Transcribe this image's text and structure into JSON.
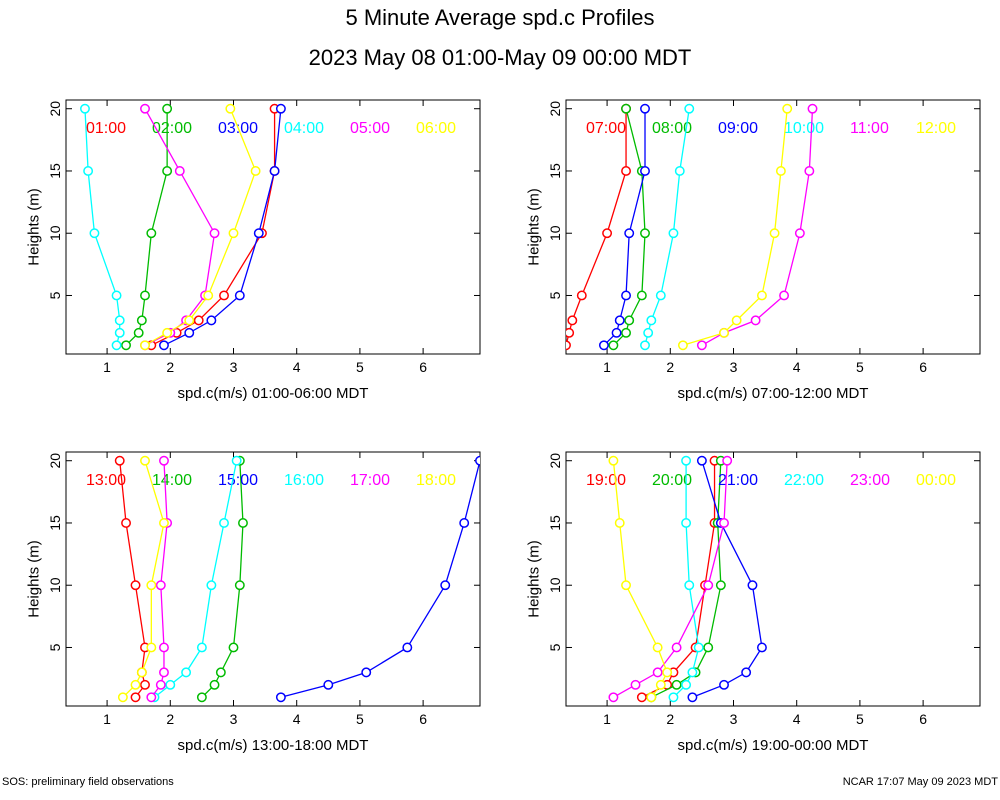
{
  "title": "5 Minute Average spd.c Profiles",
  "subtitle": "2023 May 08 01:00-May 09 00:00 MDT",
  "footer_left": "SOS: preliminary field observations",
  "footer_right": "NCAR 17:07 May 09 2023 MDT",
  "series_colors": [
    "#ff0000",
    "#00bb00",
    "#0000ff",
    "#00ffff",
    "#ff00ff",
    "#ffff00"
  ],
  "chart_data": [
    {
      "type": "line",
      "xlabel": "spd.c(m/s) 01:00-06:00 MDT",
      "ylabel": "Heights (m)",
      "xlim": [
        0.35,
        6.9
      ],
      "ylim": [
        0.3,
        20.7
      ],
      "xticks": [
        "1",
        "2",
        "3",
        "4",
        "5",
        "6"
      ],
      "yticks": [
        "5",
        "10",
        "15",
        "20"
      ],
      "heights": [
        1,
        2,
        3,
        5,
        10,
        15,
        20
      ],
      "series": [
        {
          "name": "01:00",
          "values": [
            1.7,
            2.1,
            2.45,
            2.85,
            3.45,
            3.65,
            3.65
          ]
        },
        {
          "name": "02:00",
          "values": [
            1.3,
            1.5,
            1.55,
            1.6,
            1.7,
            1.95,
            1.95
          ]
        },
        {
          "name": "03:00",
          "values": [
            1.9,
            2.3,
            2.65,
            3.1,
            3.4,
            3.65,
            3.75
          ]
        },
        {
          "name": "04:00",
          "values": [
            1.15,
            1.2,
            1.2,
            1.15,
            0.8,
            0.7,
            0.65
          ]
        },
        {
          "name": "05:00",
          "values": [
            1.6,
            2.0,
            2.25,
            2.55,
            2.7,
            2.15,
            1.6
          ]
        },
        {
          "name": "06:00",
          "values": [
            1.6,
            1.95,
            2.3,
            2.6,
            3.0,
            3.35,
            2.95
          ]
        }
      ]
    },
    {
      "type": "line",
      "xlabel": "spd.c(m/s) 07:00-12:00 MDT",
      "ylabel": "Heights (m)",
      "xlim": [
        0.35,
        6.9
      ],
      "ylim": [
        0.3,
        20.7
      ],
      "xticks": [
        "1",
        "2",
        "3",
        "4",
        "5",
        "6"
      ],
      "yticks": [
        "5",
        "10",
        "15",
        "20"
      ],
      "heights": [
        1,
        2,
        3,
        5,
        10,
        15,
        20
      ],
      "series": [
        {
          "name": "07:00",
          "values": [
            0.35,
            0.4,
            0.45,
            0.6,
            1.0,
            1.3,
            1.3
          ]
        },
        {
          "name": "08:00",
          "values": [
            1.1,
            1.3,
            1.35,
            1.55,
            1.6,
            1.55,
            1.3
          ]
        },
        {
          "name": "09:00",
          "values": [
            0.95,
            1.15,
            1.2,
            1.3,
            1.35,
            1.6,
            1.6
          ]
        },
        {
          "name": "10:00",
          "values": [
            1.6,
            1.65,
            1.7,
            1.85,
            2.05,
            2.15,
            2.3
          ]
        },
        {
          "name": "11:00",
          "values": [
            2.5,
            2.85,
            3.35,
            3.8,
            4.05,
            4.2,
            4.25
          ]
        },
        {
          "name": "12:00",
          "values": [
            2.2,
            2.85,
            3.05,
            3.45,
            3.65,
            3.75,
            3.85
          ]
        }
      ]
    },
    {
      "type": "line",
      "xlabel": "spd.c(m/s) 13:00-18:00 MDT",
      "ylabel": "Heights (m)",
      "xlim": [
        0.35,
        6.9
      ],
      "ylim": [
        0.3,
        20.7
      ],
      "xticks": [
        "1",
        "2",
        "3",
        "4",
        "5",
        "6"
      ],
      "yticks": [
        "5",
        "10",
        "15",
        "20"
      ],
      "heights": [
        1,
        2,
        3,
        5,
        10,
        15,
        20
      ],
      "series": [
        {
          "name": "13:00",
          "values": [
            1.45,
            1.6,
            1.55,
            1.6,
            1.45,
            1.3,
            1.2
          ]
        },
        {
          "name": "14:00",
          "values": [
            2.5,
            2.7,
            2.8,
            3.0,
            3.1,
            3.15,
            3.1
          ]
        },
        {
          "name": "15:00",
          "values": [
            3.75,
            4.5,
            5.1,
            5.75,
            6.35,
            6.65,
            6.9
          ]
        },
        {
          "name": "16:00",
          "values": [
            1.75,
            2.0,
            2.25,
            2.5,
            2.65,
            2.85,
            3.05
          ]
        },
        {
          "name": "17:00",
          "values": [
            1.7,
            1.85,
            1.9,
            1.9,
            1.85,
            1.95,
            1.9
          ]
        },
        {
          "name": "18:00",
          "values": [
            1.25,
            1.45,
            1.55,
            1.7,
            1.7,
            1.9,
            1.6
          ]
        }
      ]
    },
    {
      "type": "line",
      "xlabel": "spd.c(m/s) 19:00-00:00 MDT",
      "ylabel": "Heights (m)",
      "xlim": [
        0.35,
        6.9
      ],
      "ylim": [
        0.3,
        20.7
      ],
      "xticks": [
        "1",
        "2",
        "3",
        "4",
        "5",
        "6"
      ],
      "yticks": [
        "5",
        "10",
        "15",
        "20"
      ],
      "heights": [
        1,
        2,
        3,
        5,
        10,
        15,
        20
      ],
      "series": [
        {
          "name": "19:00",
          "values": [
            1.55,
            1.95,
            2.05,
            2.4,
            2.55,
            2.7,
            2.7
          ]
        },
        {
          "name": "20:00",
          "values": [
            1.7,
            2.1,
            2.4,
            2.6,
            2.8,
            2.75,
            2.8
          ]
        },
        {
          "name": "21:00",
          "values": [
            2.35,
            2.85,
            3.2,
            3.45,
            3.3,
            2.8,
            2.5
          ]
        },
        {
          "name": "22:00",
          "values": [
            2.05,
            2.25,
            2.35,
            2.45,
            2.3,
            2.25,
            2.25
          ]
        },
        {
          "name": "23:00",
          "values": [
            1.1,
            1.45,
            1.8,
            2.1,
            2.6,
            2.85,
            2.9
          ]
        },
        {
          "name": "00:00",
          "values": [
            1.7,
            1.85,
            1.95,
            1.8,
            1.3,
            1.2,
            1.1
          ]
        }
      ]
    }
  ]
}
